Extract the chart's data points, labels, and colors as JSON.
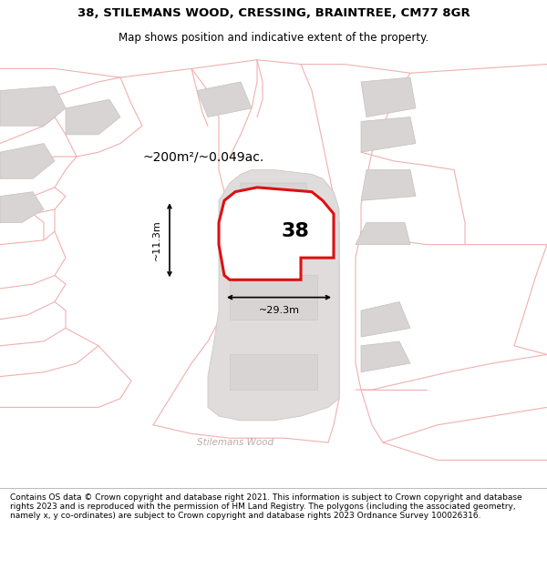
{
  "title_line1": "38, STILEMANS WOOD, CRESSING, BRAINTREE, CM77 8GR",
  "title_line2": "Map shows position and indicative extent of the property.",
  "footer_text": "Contains OS data © Crown copyright and database right 2021. This information is subject to Crown copyright and database rights 2023 and is reproduced with the permission of HM Land Registry. The polygons (including the associated geometry, namely x, y co-ordinates) are subject to Crown copyright and database rights 2023 Ordnance Survey 100026316.",
  "map_bg": "#ffffff",
  "road_color": "#f0b0b0",
  "road_lw": 0.8,
  "building_fill": "#d8d4d4",
  "building_edge": "#c4c0c0",
  "block_fill": "#e4dfdf",
  "block_edge": "#ccc8c8",
  "property_fill": "#ffffff",
  "property_edge": "#dd1111",
  "property_lw": 2.2,
  "area_text": "~200m²/~0.049ac.",
  "width_text": "~29.3m",
  "height_text": "~11.3m",
  "property_label": "38",
  "road_label_mid": "Stilemans Wood",
  "road_label_bot": "Stilemans Wood"
}
